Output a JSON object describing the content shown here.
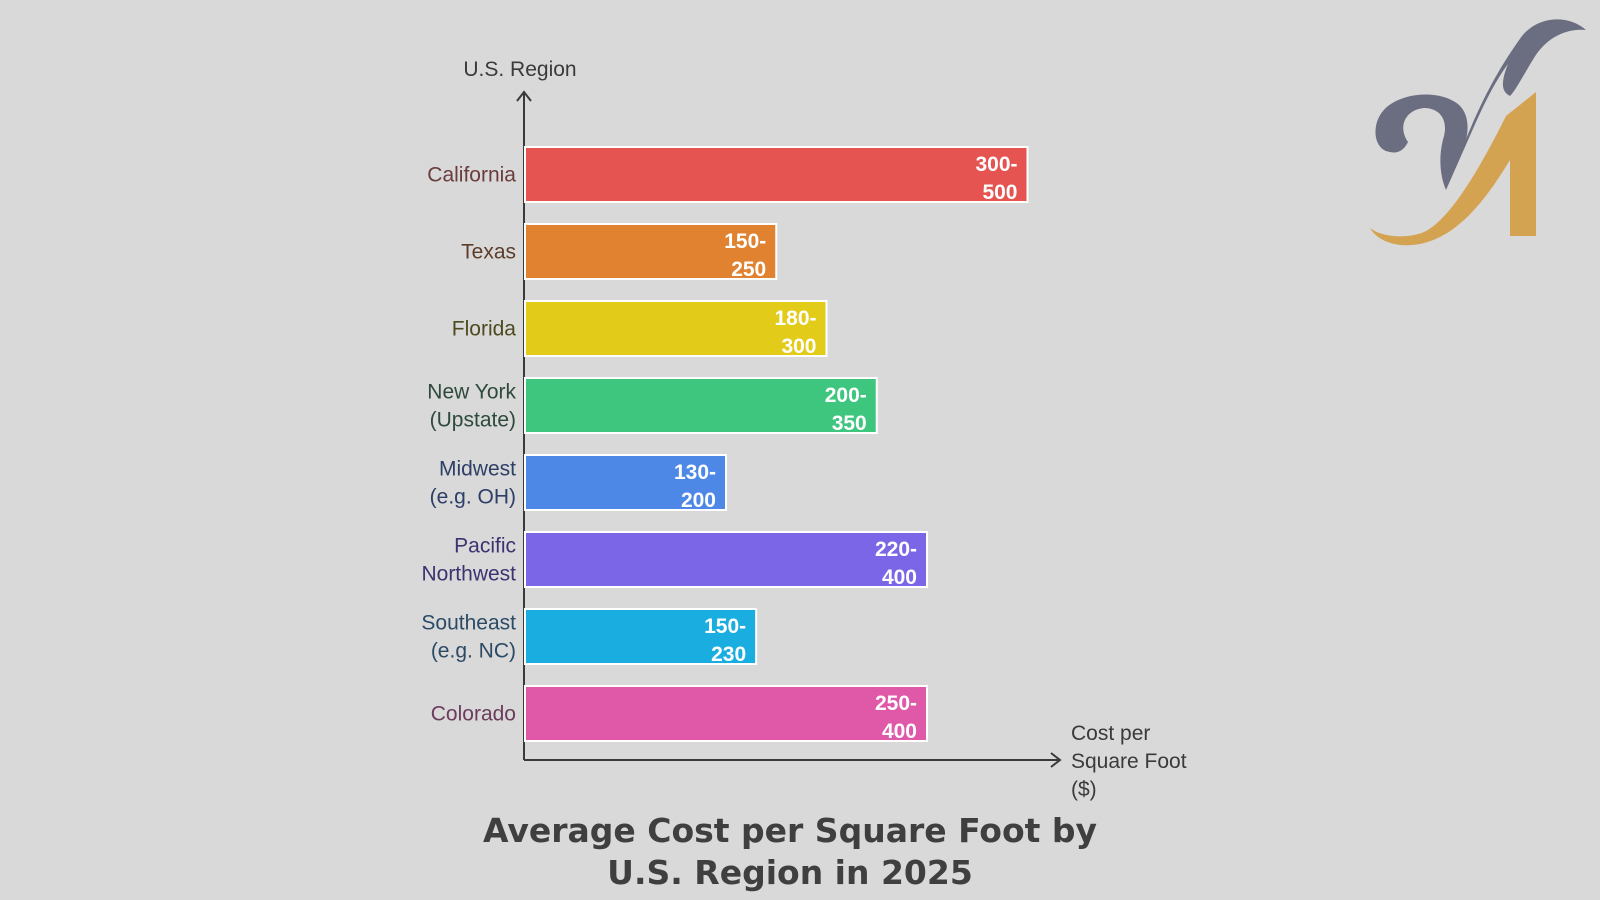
{
  "chart_data": {
    "type": "bar",
    "orientation": "horizontal",
    "title": "Average Cost per Square Foot by U.S. Region in 2025",
    "ylabel": "U.S. Region",
    "xlabel": "Cost per Square Foot ($)",
    "grid": false,
    "legend": "none",
    "xlim": [
      0,
      550
    ],
    "categories": [
      {
        "label_lines": [
          "California"
        ]
      },
      {
        "label_lines": [
          "Texas"
        ]
      },
      {
        "label_lines": [
          "Florida"
        ]
      },
      {
        "label_lines": [
          "New York",
          "(Upstate)"
        ]
      },
      {
        "label_lines": [
          "Midwest",
          "(e.g. OH)"
        ]
      },
      {
        "label_lines": [
          "Pacific",
          "Northwest"
        ]
      },
      {
        "label_lines": [
          "Southeast",
          "(e.g. NC)"
        ]
      },
      {
        "label_lines": [
          "Colorado"
        ]
      }
    ],
    "bars": [
      {
        "min": 300,
        "max": 500,
        "label_lines": [
          "300-",
          "500"
        ],
        "color": "#e55451"
      },
      {
        "min": 150,
        "max": 250,
        "label_lines": [
          "150-",
          "250"
        ],
        "color": "#e08230"
      },
      {
        "min": 180,
        "max": 300,
        "label_lines": [
          "180-",
          "300"
        ],
        "color": "#e3cb19"
      },
      {
        "min": 200,
        "max": 350,
        "label_lines": [
          "200-",
          "350"
        ],
        "color": "#3ec67f"
      },
      {
        "min": 130,
        "max": 200,
        "label_lines": [
          "130-",
          "200"
        ],
        "color": "#4d88e6"
      },
      {
        "min": 220,
        "max": 400,
        "label_lines": [
          "220-",
          "400"
        ],
        "color": "#7c66e8"
      },
      {
        "min": 150,
        "max": 230,
        "label_lines": [
          "150-",
          "230"
        ],
        "color": "#1aade0"
      },
      {
        "min": 250,
        "max": 400,
        "label_lines": [
          "250-",
          "400"
        ],
        "color": "#e059a8"
      }
    ],
    "label_colors": [
      "#6b3c3c",
      "#5c3d2a",
      "#4d4a1e",
      "#2e4a3c",
      "#2d3f66",
      "#3c3470",
      "#2c4a66",
      "#6b3c5c"
    ],
    "axis_color": "#3a3a3a",
    "bar_text_color": "#ffffff",
    "bar_border_color": "#ffffff"
  },
  "logo": {
    "name": "monogram-logo",
    "colors": [
      "#6b6e80",
      "#d9a64c"
    ]
  }
}
